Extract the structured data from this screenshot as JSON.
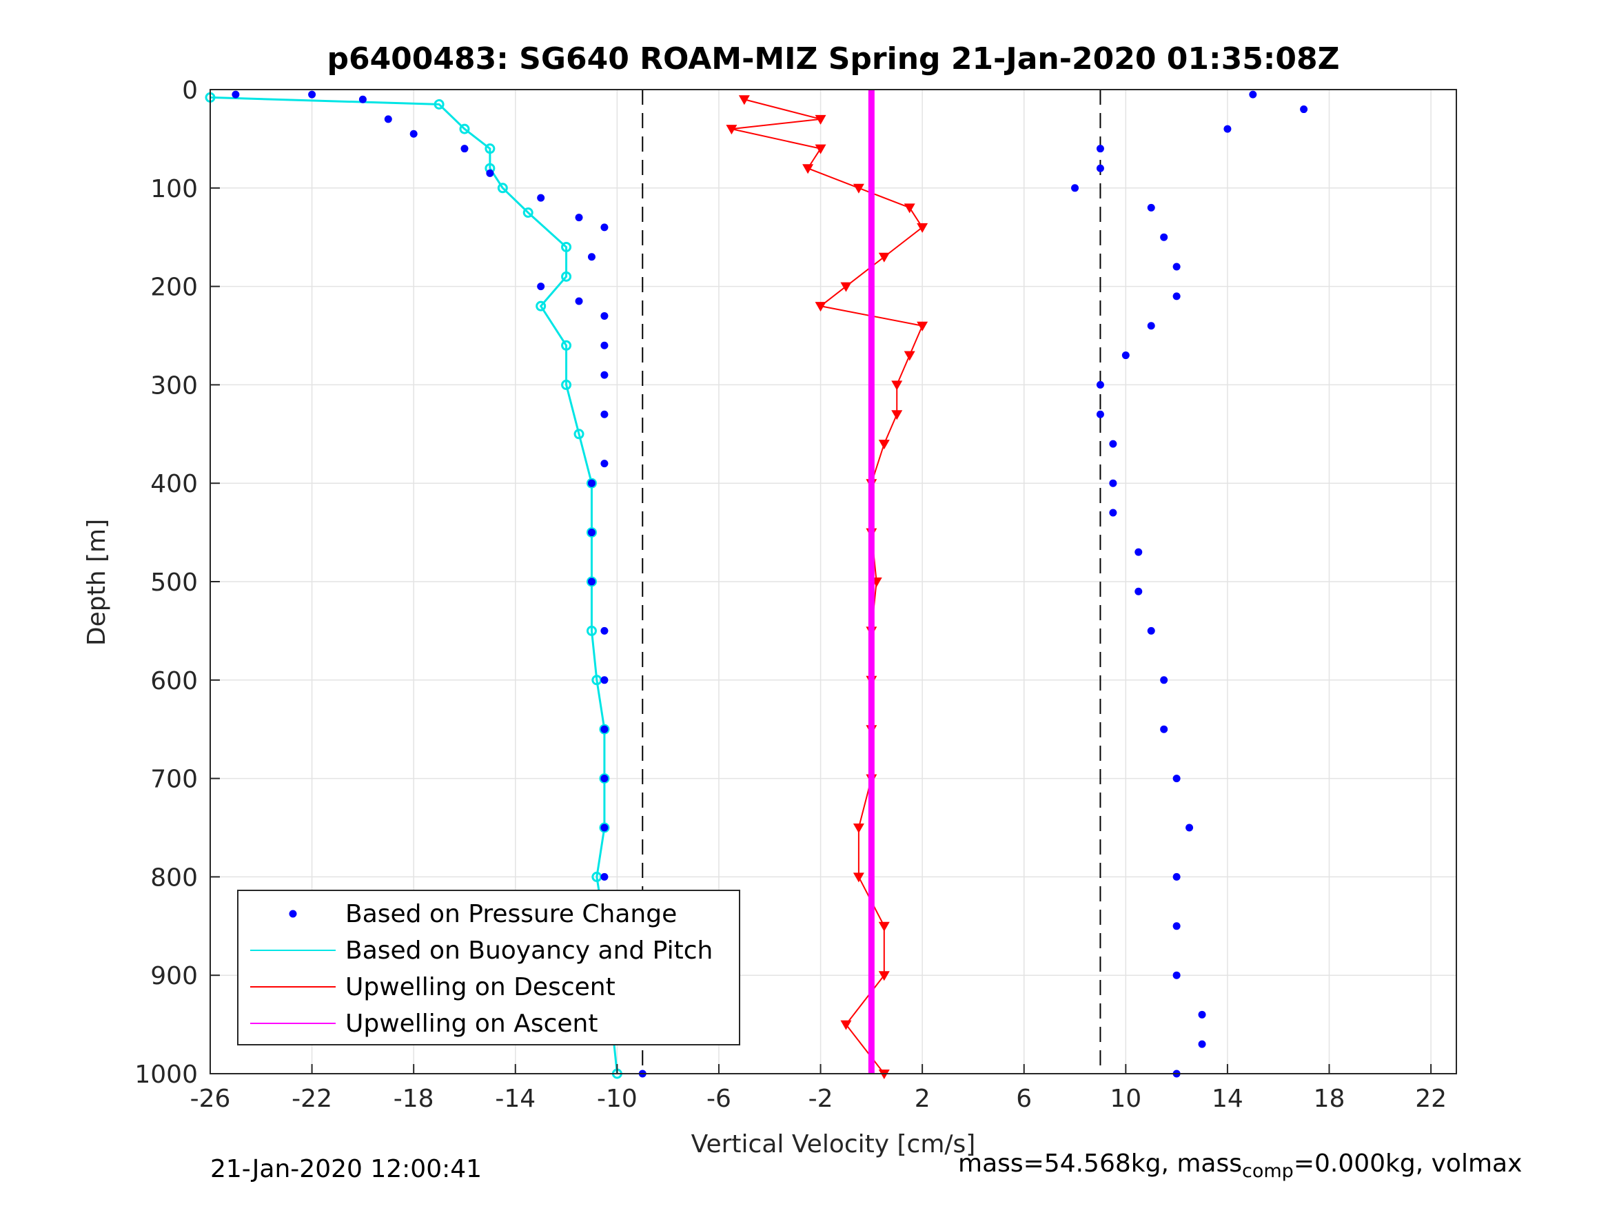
{
  "chart_data": {
    "type": "scatter",
    "title": "p6400483: SG640 ROAM-MIZ Spring 21-Jan-2020 01:35:08Z",
    "xlabel": "Vertical Velocity [cm/s]",
    "ylabel": "Depth [m]",
    "xlim": [
      -26,
      23
    ],
    "ylim": [
      0,
      1000
    ],
    "y_reversed": true,
    "x_ticks": [
      -26,
      -22,
      -18,
      -14,
      -10,
      -6,
      -2,
      2,
      6,
      10,
      14,
      18,
      22
    ],
    "y_ticks": [
      0,
      100,
      200,
      300,
      400,
      500,
      600,
      700,
      800,
      900,
      1000
    ],
    "grid": true,
    "legend_position": "bottom-left",
    "reference_lines_x": [
      -9,
      9
    ],
    "series": [
      {
        "name": "Based on Pressure Change",
        "color": "#0000ff",
        "marker": "dot",
        "descent_points": [
          [
            -25,
            5
          ],
          [
            -22,
            5
          ],
          [
            -20,
            10
          ],
          [
            -19,
            30
          ],
          [
            -18,
            45
          ],
          [
            -16,
            60
          ],
          [
            -15,
            85
          ],
          [
            -13,
            110
          ],
          [
            -11.5,
            130
          ],
          [
            -10.5,
            140
          ],
          [
            -11,
            170
          ],
          [
            -13,
            200
          ],
          [
            -11.5,
            215
          ],
          [
            -10.5,
            230
          ],
          [
            -10.5,
            260
          ],
          [
            -10.5,
            290
          ],
          [
            -10.5,
            330
          ],
          [
            -10.5,
            380
          ],
          [
            -11,
            400
          ],
          [
            -11,
            450
          ],
          [
            -11,
            500
          ],
          [
            -10.5,
            550
          ],
          [
            -10.5,
            600
          ],
          [
            -10.5,
            650
          ],
          [
            -10.5,
            700
          ],
          [
            -10.5,
            750
          ],
          [
            -10.5,
            800
          ],
          [
            -10,
            850
          ],
          [
            -10,
            900
          ],
          [
            -9.5,
            950
          ],
          [
            -9,
            1000
          ]
        ],
        "ascent_points": [
          [
            15,
            5
          ],
          [
            17,
            20
          ],
          [
            14,
            40
          ],
          [
            9,
            60
          ],
          [
            9,
            80
          ],
          [
            8,
            100
          ],
          [
            11,
            120
          ],
          [
            11.5,
            150
          ],
          [
            12,
            180
          ],
          [
            12,
            210
          ],
          [
            11,
            240
          ],
          [
            10,
            270
          ],
          [
            9,
            300
          ],
          [
            9,
            330
          ],
          [
            9.5,
            360
          ],
          [
            9.5,
            400
          ],
          [
            9.5,
            430
          ],
          [
            10.5,
            470
          ],
          [
            10.5,
            510
          ],
          [
            11,
            550
          ],
          [
            11.5,
            600
          ],
          [
            11.5,
            650
          ],
          [
            12,
            700
          ],
          [
            12.5,
            750
          ],
          [
            12,
            800
          ],
          [
            12,
            850
          ],
          [
            12,
            900
          ],
          [
            13,
            940
          ],
          [
            13,
            970
          ],
          [
            12,
            1000
          ]
        ]
      },
      {
        "name": "Based on Buoyancy and Pitch",
        "color": "#00e5e5",
        "marker": "line",
        "descent_points": [
          [
            -26,
            8
          ],
          [
            -17,
            15
          ],
          [
            -16,
            40
          ],
          [
            -15,
            60
          ],
          [
            -15,
            80
          ],
          [
            -14.5,
            100
          ],
          [
            -13.5,
            125
          ],
          [
            -12,
            160
          ],
          [
            -12,
            190
          ],
          [
            -13,
            220
          ],
          [
            -12,
            260
          ],
          [
            -12,
            300
          ],
          [
            -11.5,
            350
          ],
          [
            -11,
            400
          ],
          [
            -11,
            450
          ],
          [
            -11,
            500
          ],
          [
            -11,
            550
          ],
          [
            -10.8,
            600
          ],
          [
            -10.5,
            650
          ],
          [
            -10.5,
            700
          ],
          [
            -10.5,
            750
          ],
          [
            -10.8,
            800
          ],
          [
            -10.5,
            850
          ],
          [
            -10.5,
            900
          ],
          [
            -10.2,
            950
          ],
          [
            -10,
            1000
          ]
        ]
      },
      {
        "name": "Upwelling on Descent",
        "color": "#ff0000",
        "marker": "triangle-down",
        "points": [
          [
            -5,
            10
          ],
          [
            -2,
            30
          ],
          [
            -5.5,
            40
          ],
          [
            -2,
            60
          ],
          [
            -2.5,
            80
          ],
          [
            -0.5,
            100
          ],
          [
            1.5,
            120
          ],
          [
            2,
            140
          ],
          [
            0.5,
            170
          ],
          [
            -1,
            200
          ],
          [
            -2,
            220
          ],
          [
            2,
            240
          ],
          [
            1.5,
            270
          ],
          [
            1,
            300
          ],
          [
            1,
            330
          ],
          [
            0.5,
            360
          ],
          [
            0,
            400
          ],
          [
            0,
            450
          ],
          [
            0.2,
            500
          ],
          [
            0,
            550
          ],
          [
            0,
            600
          ],
          [
            0,
            650
          ],
          [
            0,
            700
          ],
          [
            -0.5,
            750
          ],
          [
            -0.5,
            800
          ],
          [
            0.5,
            850
          ],
          [
            0.5,
            900
          ],
          [
            -1,
            950
          ],
          [
            0.5,
            1000
          ]
        ]
      },
      {
        "name": "Upwelling on Ascent",
        "color": "#ff00ff",
        "marker": "line",
        "x_constant": 0,
        "y_range": [
          0,
          1000
        ]
      }
    ]
  },
  "footer": {
    "left_text": "21-Jan-2020 12:00:41",
    "right_prefix": "mass=54.568kg, mass",
    "right_sub": "comp",
    "right_suffix": "=0.000kg, volmax"
  }
}
